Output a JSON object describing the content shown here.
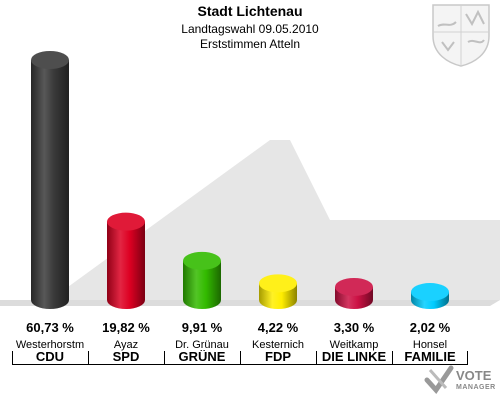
{
  "header": {
    "title": "Stadt Lichtenau",
    "subtitle1": "Landtagswahl 09.05.2010",
    "subtitle2": "Erststimmen Atteln"
  },
  "watermark": {
    "line1": "VOTE",
    "line2": "MANAGER",
    "color": "#888888"
  },
  "chart_data": {
    "type": "bar",
    "categories": [
      "CDU",
      "SPD",
      "GRÜNE",
      "FDP",
      "DIE LINKE",
      "FAMILIE"
    ],
    "candidates": [
      "Westerhorstm",
      "Ayaz",
      "Dr. Grünau",
      "Kesternich",
      "Weitkamp",
      "Honsel"
    ],
    "values": [
      60.73,
      19.82,
      9.91,
      4.22,
      3.3,
      2.02
    ],
    "value_labels": [
      "60,73 %",
      "19,82 %",
      "9,91 %",
      "4,22 %",
      "3,30 %",
      "2,02 %"
    ],
    "colors": [
      "#3a3a3a",
      "#dd0022",
      "#33bb00",
      "#ffee00",
      "#cc1144",
      "#00ccff"
    ],
    "title": "Stadt Lichtenau",
    "xlabel": "",
    "ylabel": "",
    "ylim": [
      0,
      60.73
    ],
    "grid": false,
    "legend": "none"
  }
}
